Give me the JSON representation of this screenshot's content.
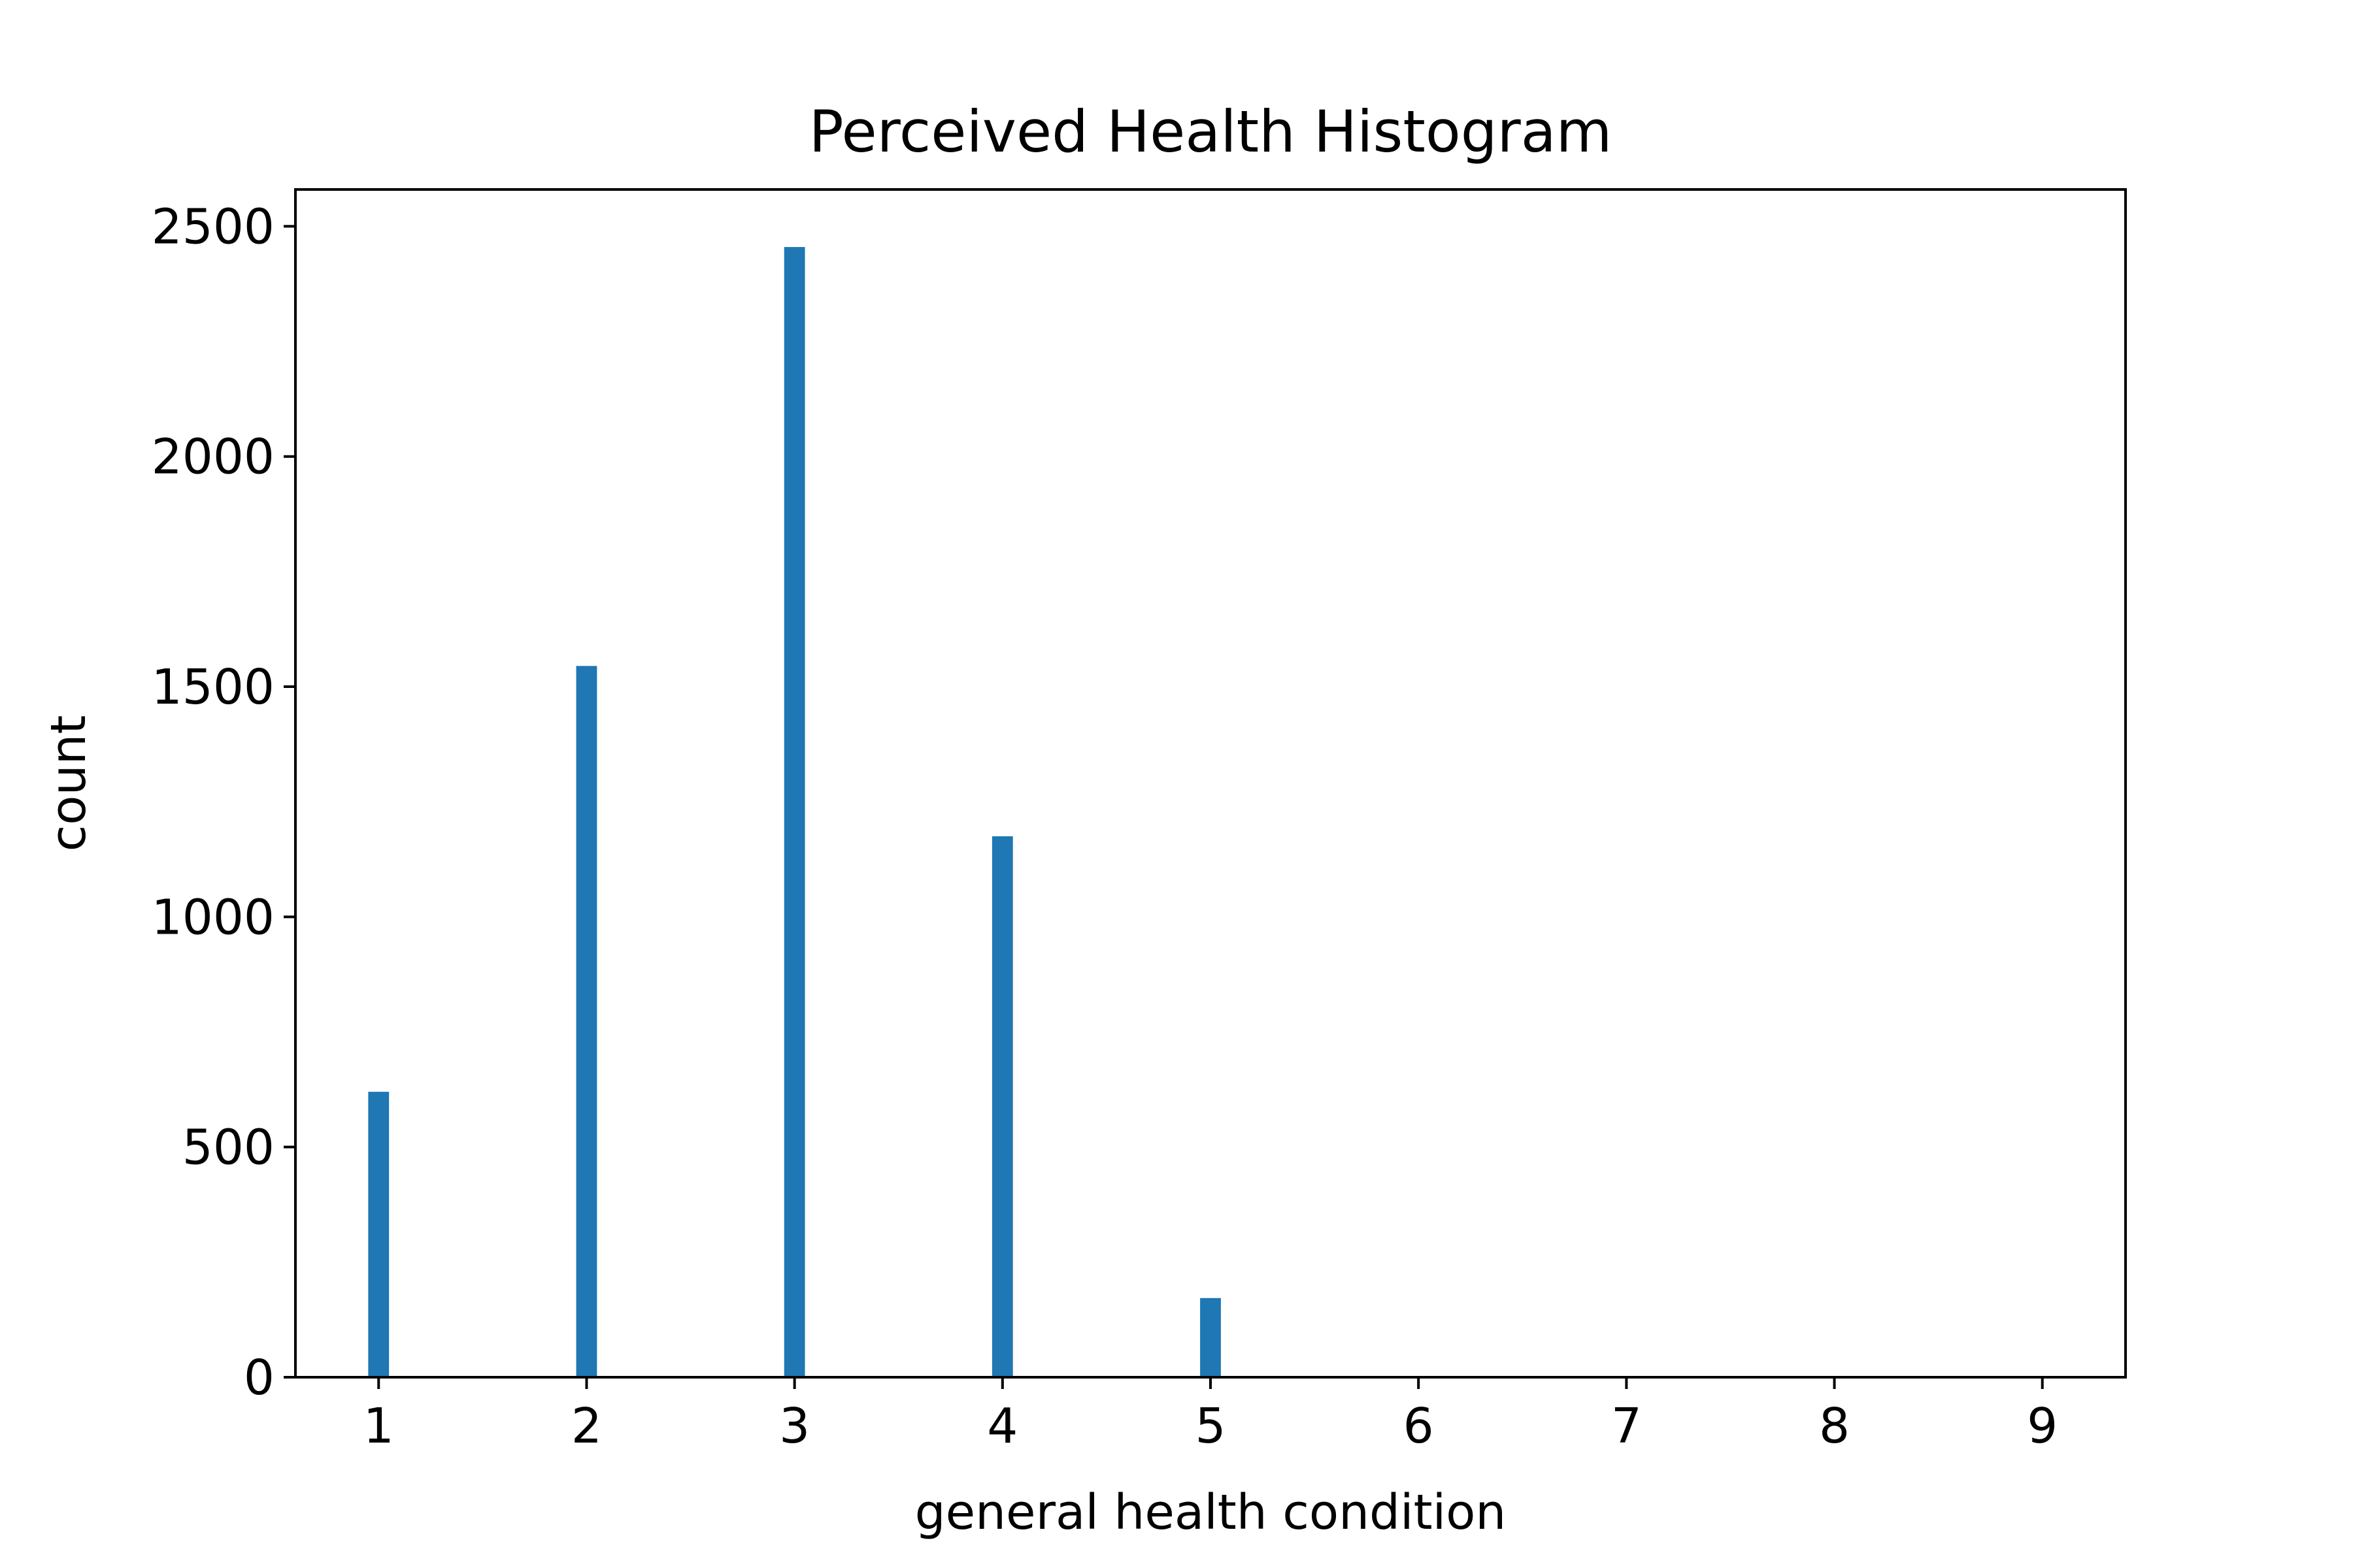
{
  "chart_data": {
    "type": "bar",
    "title": "Perceived Health Histogram",
    "xlabel": "general health condition",
    "ylabel": "count",
    "x_ticks": [
      1,
      2,
      3,
      4,
      5,
      6,
      7,
      8,
      9
    ],
    "y_ticks": [
      0,
      500,
      1000,
      1500,
      2000,
      2500
    ],
    "xlim": [
      0.6,
      9.4
    ],
    "ylim": [
      0,
      2580
    ],
    "bin_width": 0.1,
    "categories": [
      1,
      2,
      3,
      4,
      5
    ],
    "values": [
      620,
      1545,
      2455,
      1175,
      172
    ],
    "bar_color": "#1f77b4",
    "grid": false,
    "legend": "none"
  }
}
